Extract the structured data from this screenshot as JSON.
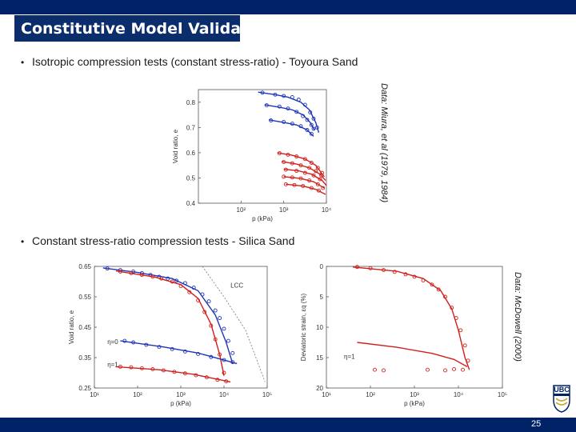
{
  "slide": {
    "title": "Constitutive Model Validation",
    "bullet1": "Isotropic compression tests (constant stress-ratio) - Toyoura Sand",
    "bullet2": "Constant stress-ratio compression tests - Silica Sand",
    "credit1": "Data: Miura, et al (1979, 1984)",
    "credit2": "Data: McDowell (2000)",
    "page_number": "25",
    "logo_text": "UBC",
    "colors": {
      "header": "#002266",
      "title_box": "#0b2d6b",
      "blue": "#1f35b5",
      "red": "#d0201c",
      "line_fit": "#1a1a1a"
    }
  },
  "chart_data": [
    {
      "type": "scatter",
      "title": "",
      "xlabel": "p (kPa)",
      "ylabel": "Void ratio, e",
      "xscale": "log",
      "xlim": [
        1,
        4
      ],
      "ylim": [
        0.4,
        0.85
      ],
      "xticks": [
        {
          "v": 2,
          "label": "10²"
        },
        {
          "v": 3,
          "label": "10³"
        },
        {
          "v": 4,
          "label": "10⁴"
        }
      ],
      "yticks": [
        {
          "v": 0.4,
          "label": "0.4"
        },
        {
          "v": 0.5,
          "label": "0.5"
        },
        {
          "v": 0.6,
          "label": "0.6"
        },
        {
          "v": 0.7,
          "label": "0.7"
        },
        {
          "v": 0.8,
          "label": "0.8"
        }
      ],
      "series": [
        {
          "name": "loose-1",
          "color": "blue",
          "line": [
            [
              2.4,
              0.84
            ],
            [
              2.8,
              0.83
            ],
            [
              3.1,
              0.82
            ],
            [
              3.4,
              0.8
            ],
            [
              3.6,
              0.77
            ],
            [
              3.75,
              0.72
            ],
            [
              3.82,
              0.68
            ]
          ],
          "points": [
            [
              2.5,
              0.838
            ],
            [
              2.8,
              0.83
            ],
            [
              3.0,
              0.825
            ],
            [
              3.2,
              0.82
            ],
            [
              3.35,
              0.81
            ],
            [
              3.5,
              0.79
            ],
            [
              3.62,
              0.76
            ],
            [
              3.7,
              0.735
            ],
            [
              3.78,
              0.7
            ]
          ]
        },
        {
          "name": "loose-2",
          "color": "blue",
          "line": [
            [
              2.55,
              0.79
            ],
            [
              2.9,
              0.78
            ],
            [
              3.2,
              0.77
            ],
            [
              3.45,
              0.75
            ],
            [
              3.62,
              0.72
            ],
            [
              3.72,
              0.69
            ]
          ],
          "points": [
            [
              2.6,
              0.788
            ],
            [
              2.9,
              0.783
            ],
            [
              3.1,
              0.775
            ],
            [
              3.3,
              0.762
            ],
            [
              3.45,
              0.745
            ],
            [
              3.55,
              0.73
            ],
            [
              3.65,
              0.71
            ],
            [
              3.7,
              0.695
            ]
          ]
        },
        {
          "name": "loose-3",
          "color": "blue",
          "line": [
            [
              2.65,
              0.73
            ],
            [
              3.0,
              0.72
            ],
            [
              3.3,
              0.71
            ],
            [
              3.55,
              0.69
            ],
            [
              3.7,
              0.665
            ]
          ],
          "points": [
            [
              2.7,
              0.728
            ],
            [
              3.0,
              0.722
            ],
            [
              3.2,
              0.715
            ],
            [
              3.4,
              0.705
            ],
            [
              3.55,
              0.69
            ],
            [
              3.65,
              0.675
            ]
          ]
        },
        {
          "name": "dense-1",
          "color": "red",
          "line": [
            [
              2.85,
              0.6
            ],
            [
              3.2,
              0.59
            ],
            [
              3.5,
              0.575
            ],
            [
              3.75,
              0.55
            ],
            [
              3.95,
              0.505
            ]
          ],
          "points": [
            [
              2.9,
              0.598
            ],
            [
              3.1,
              0.592
            ],
            [
              3.3,
              0.585
            ],
            [
              3.5,
              0.575
            ],
            [
              3.65,
              0.56
            ],
            [
              3.8,
              0.54
            ],
            [
              3.9,
              0.52
            ]
          ]
        },
        {
          "name": "dense-2",
          "color": "red",
          "line": [
            [
              2.95,
              0.565
            ],
            [
              3.3,
              0.555
            ],
            [
              3.6,
              0.54
            ],
            [
              3.85,
              0.515
            ],
            [
              3.98,
              0.49
            ]
          ],
          "points": [
            [
              3.0,
              0.563
            ],
            [
              3.2,
              0.558
            ],
            [
              3.4,
              0.55
            ],
            [
              3.6,
              0.54
            ],
            [
              3.75,
              0.527
            ],
            [
              3.88,
              0.51
            ]
          ]
        },
        {
          "name": "dense-3",
          "color": "red",
          "line": [
            [
              3.0,
              0.535
            ],
            [
              3.35,
              0.528
            ],
            [
              3.65,
              0.515
            ],
            [
              3.9,
              0.49
            ],
            [
              4.0,
              0.47
            ]
          ],
          "points": [
            [
              3.05,
              0.533
            ],
            [
              3.3,
              0.528
            ],
            [
              3.5,
              0.52
            ],
            [
              3.7,
              0.51
            ],
            [
              3.85,
              0.495
            ]
          ]
        },
        {
          "name": "dense-4",
          "color": "red",
          "line": [
            [
              3.0,
              0.505
            ],
            [
              3.4,
              0.498
            ],
            [
              3.7,
              0.485
            ],
            [
              3.95,
              0.46
            ]
          ],
          "points": [
            [
              3.0,
              0.505
            ],
            [
              3.2,
              0.502
            ],
            [
              3.4,
              0.498
            ],
            [
              3.6,
              0.49
            ],
            [
              3.8,
              0.475
            ],
            [
              3.92,
              0.46
            ]
          ]
        },
        {
          "name": "dense-5",
          "color": "red",
          "line": [
            [
              3.05,
              0.475
            ],
            [
              3.45,
              0.468
            ],
            [
              3.75,
              0.455
            ],
            [
              3.98,
              0.435
            ]
          ],
          "points": [
            [
              3.05,
              0.475
            ],
            [
              3.25,
              0.472
            ],
            [
              3.45,
              0.468
            ],
            [
              3.65,
              0.46
            ],
            [
              3.82,
              0.45
            ]
          ]
        }
      ]
    },
    {
      "type": "scatter",
      "title": "",
      "xlabel": "p (kPa)",
      "ylabel": "Void ratio, e",
      "xscale": "log",
      "xlim": [
        1,
        5
      ],
      "ylim": [
        0.25,
        0.65
      ],
      "xticks": [
        {
          "v": 1,
          "label": "10¹"
        },
        {
          "v": 2,
          "label": "10²"
        },
        {
          "v": 3,
          "label": "10³"
        },
        {
          "v": 4,
          "label": "10⁴"
        },
        {
          "v": 5,
          "label": "10⁵"
        }
      ],
      "yticks": [
        {
          "v": 0.65,
          "label": "0.65"
        },
        {
          "v": 0.55,
          "label": "0.55"
        },
        {
          "v": 0.45,
          "label": "0.45"
        },
        {
          "v": 0.35,
          "label": "0.35"
        },
        {
          "v": 0.25,
          "label": "0.25"
        }
      ],
      "annotations": [
        {
          "text": "LCC",
          "x": 4.15,
          "y": 0.58
        },
        {
          "text": "η=0",
          "x": 1.3,
          "y": 0.395
        },
        {
          "text": "η=1",
          "x": 1.3,
          "y": 0.32
        }
      ],
      "lcc_line": [
        [
          3.5,
          0.65
        ],
        [
          4.0,
          0.55
        ],
        [
          4.5,
          0.44
        ],
        [
          4.95,
          0.27
        ]
      ],
      "series": [
        {
          "name": "eta0-loose",
          "color": "blue",
          "line": [
            [
              1.2,
              0.645
            ],
            [
              2.0,
              0.63
            ],
            [
              2.8,
              0.61
            ],
            [
              3.4,
              0.57
            ],
            [
              3.8,
              0.49
            ],
            [
              4.05,
              0.4
            ],
            [
              4.2,
              0.33
            ]
          ],
          "points": [
            [
              1.3,
              0.643
            ],
            [
              1.6,
              0.638
            ],
            [
              1.9,
              0.633
            ],
            [
              2.1,
              0.628
            ],
            [
              2.3,
              0.622
            ],
            [
              2.5,
              0.616
            ],
            [
              2.7,
              0.61
            ],
            [
              2.9,
              0.603
            ],
            [
              3.1,
              0.595
            ],
            [
              3.3,
              0.58
            ],
            [
              3.5,
              0.558
            ],
            [
              3.65,
              0.535
            ],
            [
              3.8,
              0.505
            ],
            [
              3.9,
              0.48
            ],
            [
              4.0,
              0.445
            ],
            [
              4.1,
              0.405
            ],
            [
              4.2,
              0.365
            ]
          ]
        },
        {
          "name": "eta1-loose",
          "color": "red",
          "line": [
            [
              1.5,
              0.635
            ],
            [
              2.4,
              0.615
            ],
            [
              3.0,
              0.59
            ],
            [
              3.4,
              0.545
            ],
            [
              3.7,
              0.46
            ],
            [
              3.9,
              0.36
            ],
            [
              4.0,
              0.29
            ]
          ],
          "points": [
            [
              1.6,
              0.633
            ],
            [
              1.85,
              0.628
            ],
            [
              2.1,
              0.622
            ],
            [
              2.35,
              0.616
            ],
            [
              2.55,
              0.61
            ],
            [
              2.8,
              0.6
            ],
            [
              3.0,
              0.585
            ],
            [
              3.2,
              0.565
            ],
            [
              3.4,
              0.538
            ],
            [
              3.55,
              0.5
            ],
            [
              3.7,
              0.455
            ],
            [
              3.8,
              0.41
            ],
            [
              3.9,
              0.36
            ],
            [
              4.0,
              0.3
            ]
          ]
        },
        {
          "name": "eta0-dense",
          "color": "blue",
          "line": [
            [
              1.6,
              0.405
            ],
            [
              2.6,
              0.385
            ],
            [
              3.4,
              0.365
            ],
            [
              4.05,
              0.34
            ],
            [
              4.3,
              0.33
            ]
          ],
          "points": [
            [
              1.7,
              0.405
            ],
            [
              1.9,
              0.4
            ],
            [
              2.2,
              0.392
            ],
            [
              2.5,
              0.385
            ],
            [
              2.8,
              0.378
            ],
            [
              3.1,
              0.37
            ],
            [
              3.4,
              0.362
            ],
            [
              3.7,
              0.352
            ],
            [
              4.0,
              0.342
            ],
            [
              4.2,
              0.335
            ]
          ]
        },
        {
          "name": "eta1-dense",
          "color": "red",
          "line": [
            [
              1.5,
              0.32
            ],
            [
              2.5,
              0.31
            ],
            [
              3.3,
              0.295
            ],
            [
              3.8,
              0.28
            ],
            [
              4.15,
              0.27
            ]
          ],
          "points": [
            [
              1.6,
              0.32
            ],
            [
              1.85,
              0.318
            ],
            [
              2.1,
              0.315
            ],
            [
              2.35,
              0.312
            ],
            [
              2.6,
              0.308
            ],
            [
              2.85,
              0.303
            ],
            [
              3.1,
              0.298
            ],
            [
              3.35,
              0.292
            ],
            [
              3.6,
              0.285
            ],
            [
              3.85,
              0.277
            ],
            [
              4.05,
              0.272
            ]
          ]
        }
      ]
    },
    {
      "type": "scatter",
      "title": "",
      "xlabel": "p (kPa)",
      "ylabel": "Deviatoric strain, εq (%)",
      "xscale": "log",
      "xlim": [
        1,
        5
      ],
      "ylim": [
        0,
        20
      ],
      "yinverted": true,
      "xticks": [
        {
          "v": 1,
          "label": "10¹"
        },
        {
          "v": 2,
          "label": "10²"
        },
        {
          "v": 3,
          "label": "10³"
        },
        {
          "v": 4,
          "label": "10⁴"
        },
        {
          "v": 5,
          "label": "10⁵"
        }
      ],
      "yticks": [
        {
          "v": 0,
          "label": "0"
        },
        {
          "v": 5,
          "label": "5"
        },
        {
          "v": 10,
          "label": "10"
        },
        {
          "v": 15,
          "label": "15"
        },
        {
          "v": 20,
          "label": "20"
        }
      ],
      "annotations": [
        {
          "text": "η=1",
          "x": 1.4,
          "y": 15.2
        }
      ],
      "series": [
        {
          "name": "eta1-loose",
          "color": "red",
          "line": [
            [
              1.6,
              0.1
            ],
            [
              2.6,
              0.8
            ],
            [
              3.2,
              2.0
            ],
            [
              3.6,
              4.0
            ],
            [
              3.85,
              7.0
            ],
            [
              4.0,
              10.5
            ],
            [
              4.15,
              15.0
            ],
            [
              4.25,
              17.0
            ]
          ],
          "points": [
            [
              1.7,
              0.1
            ],
            [
              2.0,
              0.3
            ],
            [
              2.3,
              0.6
            ],
            [
              2.55,
              0.9
            ],
            [
              2.8,
              1.3
            ],
            [
              3.0,
              1.7
            ],
            [
              3.2,
              2.3
            ],
            [
              3.4,
              3.0
            ],
            [
              3.55,
              3.8
            ],
            [
              3.7,
              5.0
            ],
            [
              3.85,
              6.8
            ],
            [
              3.95,
              8.5
            ],
            [
              4.05,
              10.5
            ],
            [
              4.15,
              13.0
            ],
            [
              4.22,
              15.5
            ]
          ]
        },
        {
          "name": "eta1-dense",
          "color": "red",
          "line": [
            [
              1.7,
              12.5
            ],
            [
              2.6,
              13.3
            ],
            [
              3.4,
              14.3
            ],
            [
              3.9,
              15.3
            ],
            [
              4.2,
              16.5
            ]
          ],
          "points": [
            [
              2.1,
              17.0
            ],
            [
              2.3,
              17.1
            ],
            [
              3.3,
              17.0
            ],
            [
              3.7,
              17.1
            ],
            [
              3.9,
              16.9
            ],
            [
              4.1,
              17.0
            ]
          ]
        }
      ]
    }
  ]
}
